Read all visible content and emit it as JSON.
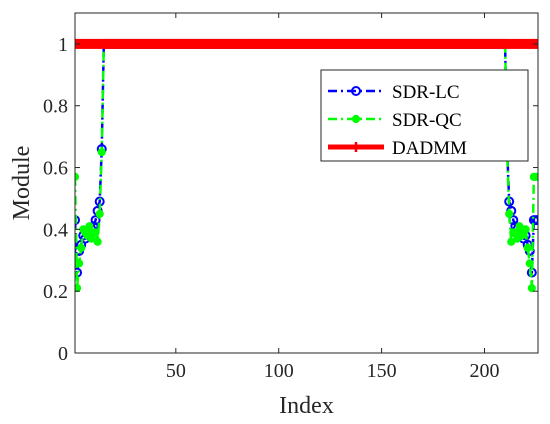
{
  "chart_data": {
    "type": "line",
    "xlabel": "Index",
    "ylabel": "Module",
    "xlim": [
      1,
      226
    ],
    "ylim": [
      0,
      1.1
    ],
    "xticks": [
      50,
      100,
      150,
      200
    ],
    "yticks": [
      0,
      0.2,
      0.4,
      0.6,
      0.8,
      1
    ],
    "xtick_labels": [
      "50",
      "100",
      "150",
      "200"
    ],
    "ytick_labels": [
      "0",
      "0.2",
      "0.4",
      "0.6",
      "0.8",
      "1"
    ],
    "grid": false,
    "box": true,
    "legend_position": "top-right",
    "series": [
      {
        "name": "SDR-LC",
        "color": "#0000ff",
        "marker": "circle-open",
        "line": "dash-dot",
        "x": [
          1,
          2,
          3,
          4,
          5,
          6,
          7,
          8,
          9,
          10,
          11,
          12,
          13,
          14,
          15,
          16,
          210,
          211,
          212,
          213,
          214,
          215,
          216,
          217,
          218,
          219,
          220,
          221,
          222,
          223,
          224,
          225,
          226
        ],
        "values": [
          0.43,
          0.26,
          0.33,
          0.35,
          0.38,
          0.37,
          0.39,
          0.38,
          0.4,
          0.41,
          0.43,
          0.46,
          0.49,
          0.66,
          1,
          1,
          1,
          0.66,
          0.49,
          0.46,
          0.43,
          0.41,
          0.4,
          0.38,
          0.39,
          0.37,
          0.38,
          0.35,
          0.33,
          0.26,
          0.43,
          0.43,
          0.43
        ]
      },
      {
        "name": "SDR-QC",
        "color": "#00ff00",
        "marker": "circle-filled",
        "line": "dash-dot",
        "x": [
          1,
          2,
          3,
          4,
          5,
          6,
          7,
          8,
          9,
          10,
          11,
          12,
          13,
          14,
          15,
          16,
          210,
          211,
          212,
          213,
          214,
          215,
          216,
          217,
          218,
          219,
          220,
          221,
          222,
          223,
          224,
          225,
          226
        ],
        "values": [
          0.57,
          0.21,
          0.29,
          0.34,
          0.4,
          0.39,
          0.38,
          0.41,
          0.37,
          0.39,
          0.39,
          0.36,
          0.45,
          0.65,
          1,
          1,
          1,
          0.65,
          0.45,
          0.36,
          0.39,
          0.39,
          0.37,
          0.41,
          0.38,
          0.39,
          0.4,
          0.34,
          0.29,
          0.21,
          0.57,
          0.57,
          0.57
        ]
      },
      {
        "name": "DADMM",
        "color": "#ff0000",
        "marker": "plus",
        "line": "solid",
        "x": [
          1,
          226
        ],
        "values": [
          1,
          1
        ]
      }
    ]
  }
}
